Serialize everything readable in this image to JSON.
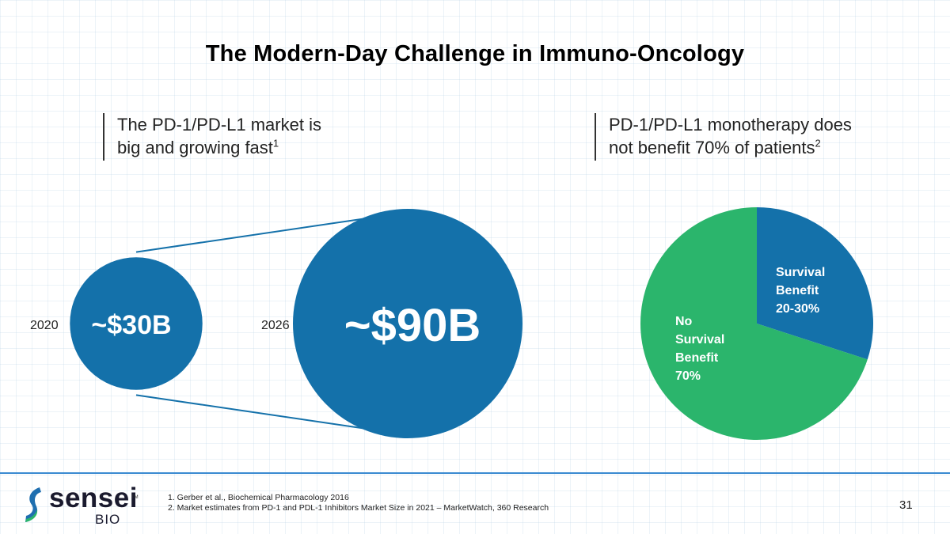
{
  "title": "The Modern-Day Challenge in Immuno-Oncology",
  "left_panel": {
    "subtitle_line1": "The PD-1/PD-L1 market is",
    "subtitle_line2": "big and growing fast",
    "footnote_ref": "1"
  },
  "right_panel": {
    "subtitle_line1": "PD-1/PD-L1 monotherapy does",
    "subtitle_line2": "not benefit 70% of patients",
    "footnote_ref": "2"
  },
  "colors": {
    "blue": "#1471aa",
    "green": "#2bb56c",
    "footer_line": "#3a8ad1"
  },
  "chart_data": [
    {
      "type": "bubble",
      "categories": [
        "2020",
        "2026"
      ],
      "value_labels": [
        "~$30B",
        "~$90B"
      ],
      "values": [
        30,
        90
      ],
      "unit": "$B"
    },
    {
      "type": "pie",
      "slices": [
        {
          "lines": [
            "Survival",
            "Benefit",
            "20-30%"
          ],
          "value": 30,
          "color": "#1471aa"
        },
        {
          "lines": [
            "No",
            "Survival",
            "Benefit",
            "70%"
          ],
          "value": 70,
          "color": "#2bb56c"
        }
      ]
    }
  ],
  "footer": {
    "notes": [
      "1. Gerber et al., Biochemical Pharmacology 2016",
      "2. Market estimates from PD-1 and PDL-1 Inhibitors Market Size in 2021 – MarketWatch, 360 Research"
    ],
    "page_number": "31",
    "logo": {
      "word": "sensei",
      "tm": "TM",
      "sub": "BIO"
    }
  }
}
